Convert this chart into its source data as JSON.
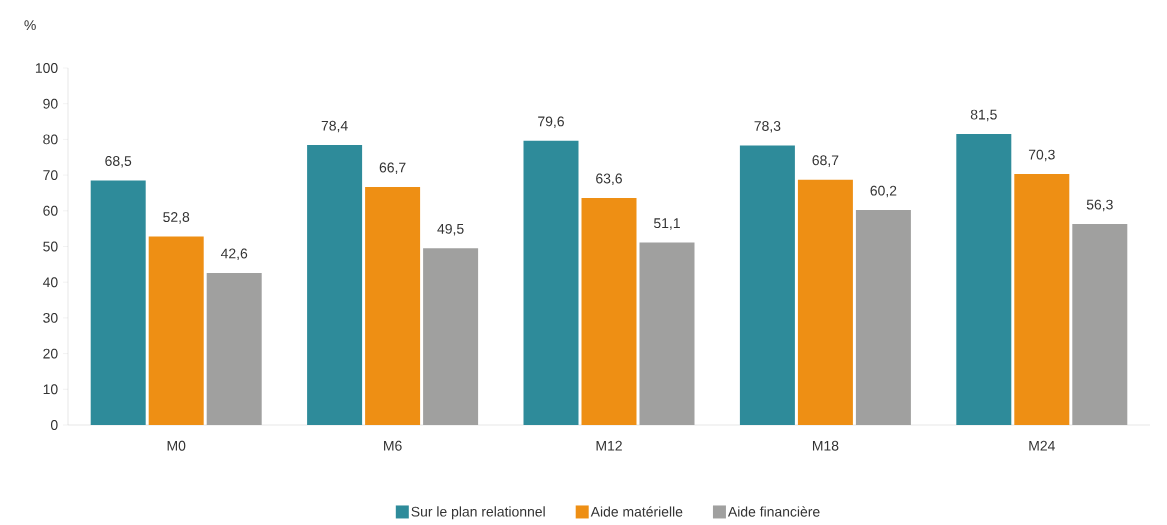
{
  "chart_data": {
    "type": "bar",
    "ylabel": "%",
    "categories": [
      "M0",
      "M6",
      "M12",
      "M18",
      "M24"
    ],
    "series": [
      {
        "name": "Sur le plan relationnel",
        "color": "#2e8b9a",
        "values": [
          68.5,
          78.4,
          79.6,
          78.3,
          81.5
        ],
        "value_labels": [
          "68,5",
          "78,4",
          "79,6",
          "78,3",
          "81,5"
        ]
      },
      {
        "name": "Aide matérielle",
        "color": "#ee8f14",
        "values": [
          52.8,
          66.7,
          63.6,
          68.7,
          70.3
        ],
        "value_labels": [
          "52,8",
          "66,7",
          "63,6",
          "68,7",
          "70,3"
        ]
      },
      {
        "name": "Aide financière",
        "color": "#a0a09f",
        "values": [
          42.6,
          49.5,
          51.1,
          60.2,
          56.3
        ],
        "value_labels": [
          "42,6",
          "49,5",
          "51,1",
          "60,2",
          "56,3"
        ]
      }
    ],
    "ylim": [
      0,
      100
    ],
    "yticks": [
      0,
      10,
      20,
      30,
      40,
      50,
      60,
      70,
      80,
      90,
      100
    ],
    "legend": "bottom"
  }
}
